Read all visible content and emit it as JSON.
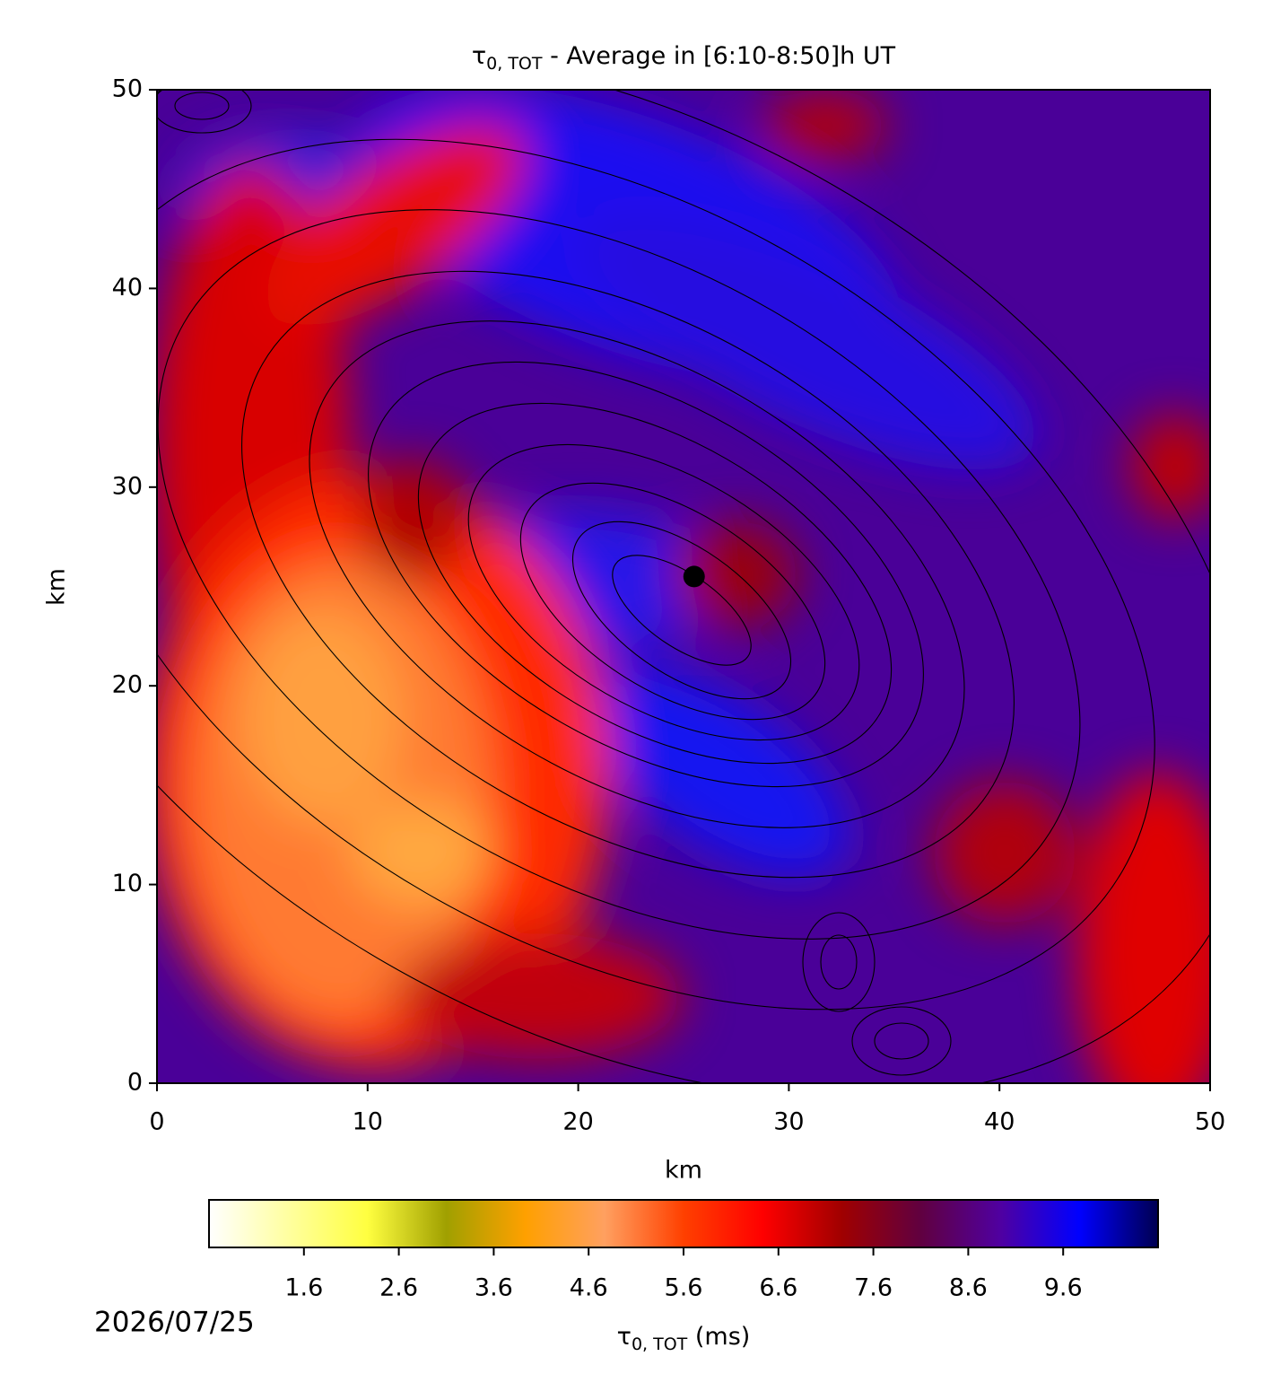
{
  "chart_data": {
    "type": "heatmap",
    "title": {
      "symbol": "τ",
      "subscript": "0, TOT",
      "text": " - Average in [6:10-8:50]h UT"
    },
    "xlabel": "km",
    "ylabel": "km",
    "xlim": [
      0,
      50
    ],
    "ylim": [
      0,
      50
    ],
    "xticks": [
      0,
      10,
      20,
      30,
      40,
      50
    ],
    "yticks": [
      0,
      10,
      20,
      30,
      40,
      50
    ],
    "point": {
      "x": 25.5,
      "y": 25.5,
      "color": "#000000"
    },
    "colorbar": {
      "clim": [
        0.6,
        10.6
      ],
      "ticks": [
        1.6,
        2.6,
        3.6,
        4.6,
        5.6,
        6.6,
        7.6,
        8.6,
        9.6
      ],
      "label": {
        "symbol": "τ",
        "subscript": "0, TOT",
        "text": " (ms)"
      },
      "colormap": [
        "#ffffff",
        "#ffffa0",
        "#ffff40",
        "#a0a000",
        "#ffa000",
        "#ffa060",
        "#ff4000",
        "#ff0000",
        "#a00000",
        "#600040",
        "#5000a0",
        "#0000ff",
        "#000050"
      ]
    },
    "date": "2026/07/25"
  }
}
